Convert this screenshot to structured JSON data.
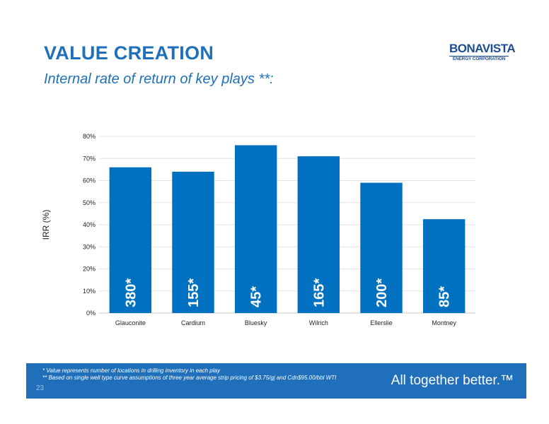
{
  "header": {
    "title": "VALUE CREATION",
    "subtitle": "Internal rate of return of key plays **:"
  },
  "logo": {
    "name": "BONAVISTA",
    "sub": "ENERGY CORPORATION"
  },
  "chart_data": {
    "type": "bar",
    "categories": [
      "Glauconite",
      "Cardium",
      "Bluesky",
      "Wilrich",
      "Ellerslie",
      "Montney"
    ],
    "values": [
      66,
      64,
      76,
      71,
      59,
      42.5
    ],
    "bar_labels": [
      "380*",
      "155*",
      "45*",
      "165*",
      "200*",
      "85*"
    ],
    "ylabel": "IRR (%)",
    "ylim": [
      0,
      80
    ],
    "yticks": [
      0,
      10,
      20,
      30,
      40,
      50,
      60,
      70,
      80
    ],
    "ytick_labels": [
      "0%",
      "10%",
      "20%",
      "30%",
      "40%",
      "50%",
      "60%",
      "70%",
      "80%"
    ],
    "grid": true,
    "bar_color": "#0070c0"
  },
  "footer": {
    "footnote1": "*   Value represents number of locations in drilling inventory in each play",
    "footnote2": "** Based on single well type curve assumptions of three year average  strip pricing of $3.75/gj and Cdn$95.00/bbl WTI",
    "page_number": "23",
    "tagline": "All together better.™"
  },
  "colors": {
    "accent": "#1f6fba",
    "logo": "#1c4c92"
  }
}
